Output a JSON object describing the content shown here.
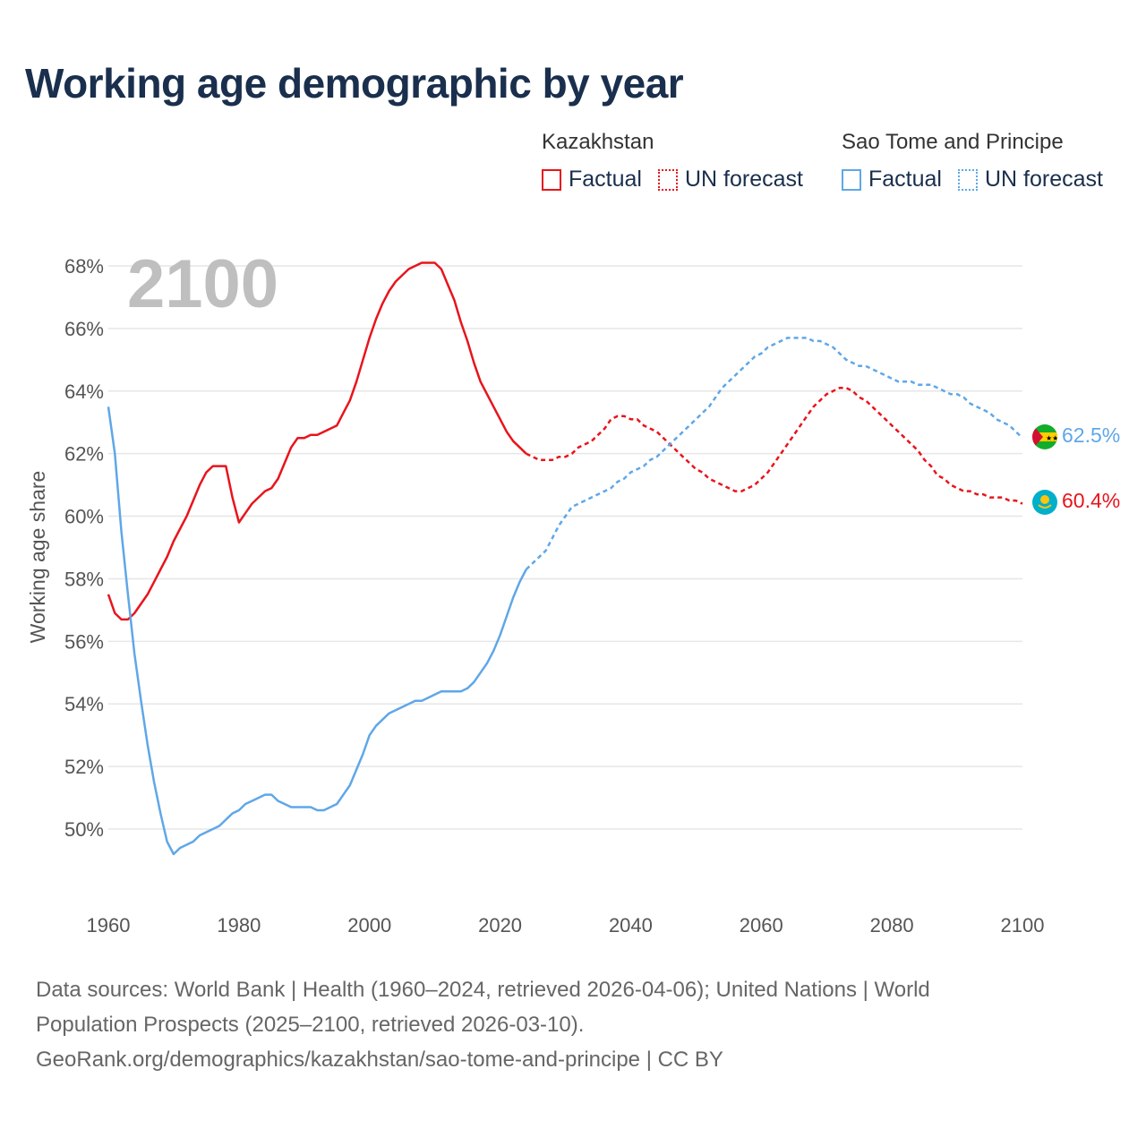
{
  "title": "Working age demographic by year",
  "legend": {
    "groups": [
      {
        "country": "Kazakhstan",
        "color": "#e8141c",
        "factual_label": "Factual",
        "forecast_label": "UN forecast"
      },
      {
        "country": "Sao Tome and Principe",
        "color": "#5fa7e8",
        "factual_label": "Factual",
        "forecast_label": "UN forecast"
      }
    ]
  },
  "year_label": "2100",
  "footer": {
    "line1": "Data sources: World Bank | Health (1960–2024, retrieved 2026-04-06); United Nations | World",
    "line2": "Population Prospects (2025–2100, retrieved 2026-03-10).",
    "line3": "GeoRank.org/demographics/kazakhstan/sao-tome-and-principe | CC BY"
  },
  "end_labels": [
    {
      "series": "Sao Tome and Principe",
      "text": "62.5%",
      "flag_icon": "sao-tome-flag-icon"
    },
    {
      "series": "Kazakhstan",
      "text": "60.4%",
      "flag_icon": "kazakhstan-flag-icon"
    }
  ],
  "chart_data": {
    "type": "line",
    "title": "Working age demographic by year",
    "xlabel": "",
    "ylabel": "Working age share",
    "xlim": [
      1960,
      2100
    ],
    "ylim": [
      48,
      69
    ],
    "xticks": [
      1960,
      1980,
      2000,
      2020,
      2040,
      2060,
      2080,
      2100
    ],
    "yticks": [
      50,
      52,
      54,
      56,
      58,
      60,
      62,
      64,
      66,
      68
    ],
    "ytick_labels": [
      "50%",
      "52%",
      "54%",
      "56%",
      "58%",
      "60%",
      "62%",
      "64%",
      "66%",
      "68%"
    ],
    "factual_until": 2024,
    "grid": true,
    "series": [
      {
        "name": "Kazakhstan",
        "color": "#e8141c",
        "x": [
          1960,
          1961,
          1962,
          1963,
          1964,
          1965,
          1966,
          1967,
          1968,
          1969,
          1970,
          1971,
          1972,
          1973,
          1974,
          1975,
          1976,
          1977,
          1978,
          1979,
          1980,
          1981,
          1982,
          1983,
          1984,
          1985,
          1986,
          1987,
          1988,
          1989,
          1990,
          1991,
          1992,
          1993,
          1994,
          1995,
          1996,
          1997,
          1998,
          1999,
          2000,
          2001,
          2002,
          2003,
          2004,
          2005,
          2006,
          2007,
          2008,
          2009,
          2010,
          2011,
          2012,
          2013,
          2014,
          2015,
          2016,
          2017,
          2018,
          2019,
          2020,
          2021,
          2022,
          2023,
          2024,
          2025,
          2026,
          2027,
          2028,
          2029,
          2030,
          2031,
          2032,
          2033,
          2034,
          2035,
          2036,
          2037,
          2038,
          2039,
          2040,
          2041,
          2042,
          2043,
          2044,
          2045,
          2046,
          2047,
          2048,
          2049,
          2050,
          2051,
          2052,
          2053,
          2054,
          2055,
          2056,
          2057,
          2058,
          2059,
          2060,
          2061,
          2062,
          2063,
          2064,
          2065,
          2066,
          2067,
          2068,
          2069,
          2070,
          2071,
          2072,
          2073,
          2074,
          2075,
          2076,
          2077,
          2078,
          2079,
          2080,
          2081,
          2082,
          2083,
          2084,
          2085,
          2086,
          2087,
          2088,
          2089,
          2090,
          2091,
          2092,
          2093,
          2094,
          2095,
          2096,
          2097,
          2098,
          2099,
          2100
        ],
        "values": [
          57.5,
          56.9,
          56.7,
          56.7,
          56.9,
          57.2,
          57.5,
          57.9,
          58.3,
          58.7,
          59.2,
          59.6,
          60.0,
          60.5,
          61.0,
          61.4,
          61.6,
          61.6,
          61.6,
          60.6,
          59.8,
          60.1,
          60.4,
          60.6,
          60.8,
          60.9,
          61.2,
          61.7,
          62.2,
          62.5,
          62.5,
          62.6,
          62.6,
          62.7,
          62.8,
          62.9,
          63.3,
          63.7,
          64.3,
          65.0,
          65.7,
          66.3,
          66.8,
          67.2,
          67.5,
          67.7,
          67.9,
          68.0,
          68.1,
          68.1,
          68.1,
          67.9,
          67.4,
          66.9,
          66.2,
          65.6,
          64.9,
          64.3,
          63.9,
          63.5,
          63.1,
          62.7,
          62.4,
          62.2,
          62.0,
          61.9,
          61.8,
          61.8,
          61.8,
          61.9,
          61.9,
          62.0,
          62.2,
          62.3,
          62.4,
          62.6,
          62.8,
          63.1,
          63.2,
          63.2,
          63.1,
          63.1,
          62.9,
          62.8,
          62.7,
          62.5,
          62.3,
          62.1,
          61.9,
          61.7,
          61.5,
          61.4,
          61.2,
          61.1,
          61.0,
          60.9,
          60.8,
          60.8,
          60.9,
          61.0,
          61.2,
          61.4,
          61.7,
          62.0,
          62.3,
          62.6,
          62.9,
          63.2,
          63.5,
          63.7,
          63.9,
          64.0,
          64.1,
          64.1,
          64.0,
          63.8,
          63.7,
          63.5,
          63.3,
          63.1,
          62.9,
          62.7,
          62.5,
          62.3,
          62.1,
          61.8,
          61.6,
          61.3,
          61.2,
          61.0,
          60.9,
          60.8,
          60.8,
          60.7,
          60.7,
          60.6,
          60.6,
          60.6,
          60.5,
          60.5,
          60.4
        ]
      },
      {
        "name": "Sao Tome and Principe",
        "color": "#5fa7e8",
        "x": [
          1960,
          1961,
          1962,
          1963,
          1964,
          1965,
          1966,
          1967,
          1968,
          1969,
          1970,
          1971,
          1972,
          1973,
          1974,
          1975,
          1976,
          1977,
          1978,
          1979,
          1980,
          1981,
          1982,
          1983,
          1984,
          1985,
          1986,
          1987,
          1988,
          1989,
          1990,
          1991,
          1992,
          1993,
          1994,
          1995,
          1996,
          1997,
          1998,
          1999,
          2000,
          2001,
          2002,
          2003,
          2004,
          2005,
          2006,
          2007,
          2008,
          2009,
          2010,
          2011,
          2012,
          2013,
          2014,
          2015,
          2016,
          2017,
          2018,
          2019,
          2020,
          2021,
          2022,
          2023,
          2024,
          2025,
          2026,
          2027,
          2028,
          2029,
          2030,
          2031,
          2032,
          2033,
          2034,
          2035,
          2036,
          2037,
          2038,
          2039,
          2040,
          2041,
          2042,
          2043,
          2044,
          2045,
          2046,
          2047,
          2048,
          2049,
          2050,
          2051,
          2052,
          2053,
          2054,
          2055,
          2056,
          2057,
          2058,
          2059,
          2060,
          2061,
          2062,
          2063,
          2064,
          2065,
          2066,
          2067,
          2068,
          2069,
          2070,
          2071,
          2072,
          2073,
          2074,
          2075,
          2076,
          2077,
          2078,
          2079,
          2080,
          2081,
          2082,
          2083,
          2084,
          2085,
          2086,
          2087,
          2088,
          2089,
          2090,
          2091,
          2092,
          2093,
          2094,
          2095,
          2096,
          2097,
          2098,
          2099,
          2100
        ],
        "values": [
          63.5,
          62.0,
          59.5,
          57.5,
          55.6,
          54.1,
          52.7,
          51.5,
          50.5,
          49.6,
          49.2,
          49.4,
          49.5,
          49.6,
          49.8,
          49.9,
          50.0,
          50.1,
          50.3,
          50.5,
          50.6,
          50.8,
          50.9,
          51.0,
          51.1,
          51.1,
          50.9,
          50.8,
          50.7,
          50.7,
          50.7,
          50.7,
          50.6,
          50.6,
          50.7,
          50.8,
          51.1,
          51.4,
          51.9,
          52.4,
          53.0,
          53.3,
          53.5,
          53.7,
          53.8,
          53.9,
          54.0,
          54.1,
          54.1,
          54.2,
          54.3,
          54.4,
          54.4,
          54.4,
          54.4,
          54.5,
          54.7,
          55.0,
          55.3,
          55.7,
          56.2,
          56.8,
          57.4,
          57.9,
          58.3,
          58.5,
          58.7,
          58.9,
          59.3,
          59.7,
          60.0,
          60.3,
          60.4,
          60.5,
          60.6,
          60.7,
          60.8,
          60.9,
          61.1,
          61.2,
          61.4,
          61.5,
          61.6,
          61.8,
          61.9,
          62.1,
          62.3,
          62.5,
          62.7,
          62.9,
          63.1,
          63.3,
          63.5,
          63.8,
          64.1,
          64.3,
          64.5,
          64.7,
          64.9,
          65.1,
          65.2,
          65.4,
          65.5,
          65.6,
          65.7,
          65.7,
          65.7,
          65.7,
          65.6,
          65.6,
          65.5,
          65.4,
          65.2,
          65.0,
          64.9,
          64.8,
          64.8,
          64.7,
          64.6,
          64.5,
          64.4,
          64.3,
          64.3,
          64.3,
          64.2,
          64.2,
          64.2,
          64.1,
          64.0,
          63.9,
          63.9,
          63.8,
          63.6,
          63.5,
          63.4,
          63.3,
          63.1,
          63.0,
          62.9,
          62.7,
          62.5
        ]
      }
    ]
  }
}
